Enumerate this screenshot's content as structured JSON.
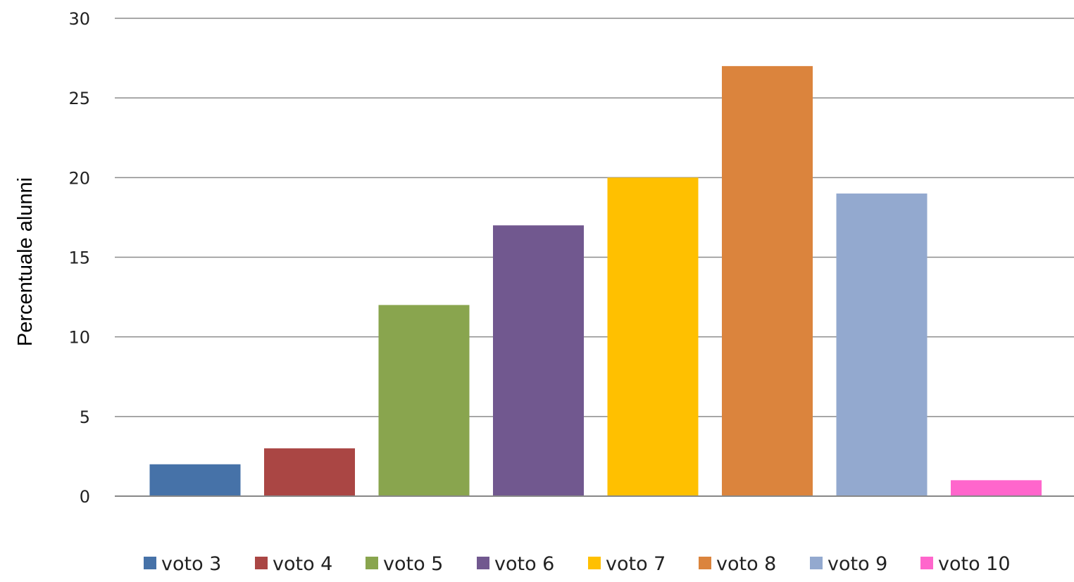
{
  "chart_data": {
    "type": "bar",
    "title": "",
    "xlabel": "",
    "ylabel": "Percentuale alunni",
    "ylim": [
      0,
      30
    ],
    "yticks": [
      0,
      5,
      10,
      15,
      20,
      25,
      30
    ],
    "grid": true,
    "legend_position": "bottom",
    "series": [
      {
        "name": "voto 3",
        "value": 2,
        "color": "#4672A8"
      },
      {
        "name": "voto 4",
        "value": 3,
        "color": "#AA4644"
      },
      {
        "name": "voto 5",
        "value": 12,
        "color": "#89A54E"
      },
      {
        "name": "voto 6",
        "value": 17,
        "color": "#71588F"
      },
      {
        "name": "voto 7",
        "value": 20,
        "color": "#FFC000"
      },
      {
        "name": "voto 8",
        "value": 27,
        "color": "#DB843D"
      },
      {
        "name": "voto 9",
        "value": 19,
        "color": "#93A9CF"
      },
      {
        "name": "voto 10",
        "value": 1,
        "color": "#FF66CC"
      }
    ]
  }
}
